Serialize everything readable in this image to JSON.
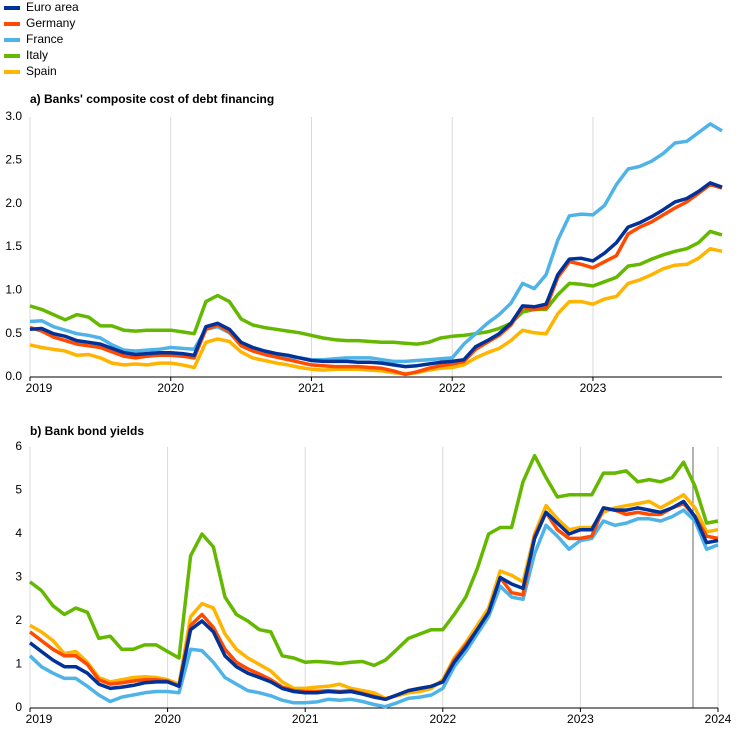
{
  "chart_data": [
    {
      "type": "line",
      "title": "a) Banks' composite cost of debt financing",
      "x": [
        2019,
        2019.083,
        2019.167,
        2019.25,
        2019.333,
        2019.417,
        2019.5,
        2019.583,
        2019.667,
        2019.75,
        2019.833,
        2019.917,
        2020,
        2020.083,
        2020.167,
        2020.25,
        2020.333,
        2020.417,
        2020.5,
        2020.583,
        2020.667,
        2020.75,
        2020.833,
        2020.917,
        2021,
        2021.083,
        2021.167,
        2021.25,
        2021.333,
        2021.417,
        2021.5,
        2021.583,
        2021.667,
        2021.75,
        2021.833,
        2021.917,
        2022,
        2022.083,
        2022.167,
        2022.25,
        2022.333,
        2022.417,
        2022.5,
        2022.583,
        2022.667,
        2022.75,
        2022.833,
        2022.917,
        2023,
        2023.083,
        2023.167,
        2023.25,
        2023.333,
        2023.417,
        2023.5,
        2023.583,
        2023.667,
        2023.75,
        2023.833,
        2023.917
      ],
      "xlim": [
        2019,
        2023.917
      ],
      "xticks": [
        2019,
        2020,
        2021,
        2022,
        2023
      ],
      "ylim": [
        0,
        3
      ],
      "yticks": [
        {
          "value": 0,
          "label": "0.0"
        },
        0.5,
        {
          "value": 1,
          "label": "1.0"
        },
        1.5,
        {
          "value": 2,
          "label": "2.0"
        },
        2.5,
        {
          "value": 3,
          "label": "3.0"
        }
      ],
      "grid": "x",
      "series": [
        {
          "name": "Euro area",
          "color": "#003299",
          "values": [
            0.55,
            0.56,
            0.5,
            0.47,
            0.42,
            0.4,
            0.38,
            0.33,
            0.28,
            0.26,
            0.27,
            0.28,
            0.28,
            0.27,
            0.25,
            0.58,
            0.62,
            0.55,
            0.4,
            0.34,
            0.3,
            0.27,
            0.25,
            0.22,
            0.19,
            0.18,
            0.18,
            0.18,
            0.17,
            0.17,
            0.16,
            0.14,
            0.12,
            0.13,
            0.15,
            0.17,
            0.18,
            0.2,
            0.35,
            0.42,
            0.5,
            0.62,
            0.82,
            0.81,
            0.84,
            1.18,
            1.36,
            1.37,
            1.34,
            1.43,
            1.55,
            1.73,
            1.78,
            1.85,
            1.93,
            2.02,
            2.06,
            2.14,
            2.24,
            2.19
          ]
        },
        {
          "name": "Germany",
          "color": "#ff4b00",
          "values": [
            0.57,
            0.53,
            0.46,
            0.42,
            0.38,
            0.36,
            0.34,
            0.29,
            0.24,
            0.22,
            0.24,
            0.25,
            0.25,
            0.24,
            0.22,
            0.55,
            0.6,
            0.52,
            0.36,
            0.3,
            0.26,
            0.23,
            0.2,
            0.17,
            0.14,
            0.13,
            0.12,
            0.12,
            0.12,
            0.11,
            0.1,
            0.07,
            0.03,
            0.06,
            0.1,
            0.13,
            0.15,
            0.18,
            0.32,
            0.4,
            0.48,
            0.6,
            0.8,
            0.78,
            0.8,
            1.15,
            1.33,
            1.3,
            1.26,
            1.33,
            1.4,
            1.65,
            1.73,
            1.79,
            1.87,
            1.95,
            2.02,
            2.12,
            2.22,
            2.18
          ]
        },
        {
          "name": "France",
          "color": "#4fb3e8",
          "values": [
            0.64,
            0.65,
            0.58,
            0.54,
            0.5,
            0.48,
            0.45,
            0.37,
            0.31,
            0.3,
            0.31,
            0.32,
            0.34,
            0.33,
            0.32,
            0.55,
            0.58,
            0.51,
            0.37,
            0.31,
            0.27,
            0.24,
            0.22,
            0.22,
            0.2,
            0.2,
            0.21,
            0.22,
            0.22,
            0.22,
            0.2,
            0.18,
            0.18,
            0.19,
            0.2,
            0.21,
            0.22,
            0.38,
            0.5,
            0.62,
            0.72,
            0.85,
            1.08,
            1.02,
            1.18,
            1.58,
            1.86,
            1.88,
            1.87,
            1.98,
            2.22,
            2.4,
            2.43,
            2.49,
            2.58,
            2.7,
            2.72,
            2.82,
            2.92,
            2.84
          ]
        },
        {
          "name": "Italy",
          "color": "#65b800",
          "values": [
            0.82,
            0.78,
            0.72,
            0.66,
            0.72,
            0.69,
            0.59,
            0.59,
            0.54,
            0.53,
            0.54,
            0.54,
            0.54,
            0.52,
            0.5,
            0.87,
            0.94,
            0.87,
            0.67,
            0.6,
            0.57,
            0.55,
            0.53,
            0.51,
            0.48,
            0.45,
            0.43,
            0.42,
            0.42,
            0.41,
            0.4,
            0.4,
            0.39,
            0.38,
            0.4,
            0.45,
            0.47,
            0.48,
            0.5,
            0.52,
            0.56,
            0.62,
            0.75,
            0.78,
            0.78,
            0.95,
            1.08,
            1.07,
            1.05,
            1.1,
            1.15,
            1.28,
            1.3,
            1.36,
            1.41,
            1.45,
            1.48,
            1.55,
            1.68,
            1.64
          ]
        },
        {
          "name": "Spain",
          "color": "#ffb400",
          "values": [
            0.37,
            0.34,
            0.32,
            0.3,
            0.25,
            0.26,
            0.22,
            0.16,
            0.14,
            0.15,
            0.14,
            0.16,
            0.16,
            0.14,
            0.11,
            0.4,
            0.44,
            0.41,
            0.29,
            0.22,
            0.19,
            0.16,
            0.14,
            0.11,
            0.09,
            0.08,
            0.09,
            0.09,
            0.09,
            0.08,
            0.07,
            0.05,
            0.04,
            0.05,
            0.08,
            0.1,
            0.11,
            0.14,
            0.22,
            0.28,
            0.33,
            0.42,
            0.54,
            0.51,
            0.5,
            0.73,
            0.87,
            0.87,
            0.84,
            0.9,
            0.93,
            1.08,
            1.12,
            1.18,
            1.25,
            1.29,
            1.3,
            1.37,
            1.48,
            1.45
          ]
        }
      ]
    },
    {
      "type": "line",
      "title": "b) Bank bond yields",
      "x": [
        2019,
        2019.083,
        2019.167,
        2019.25,
        2019.333,
        2019.417,
        2019.5,
        2019.583,
        2019.667,
        2019.75,
        2019.833,
        2019.917,
        2020,
        2020.083,
        2020.167,
        2020.25,
        2020.333,
        2020.417,
        2020.5,
        2020.583,
        2020.667,
        2020.75,
        2020.833,
        2020.917,
        2021,
        2021.083,
        2021.167,
        2021.25,
        2021.333,
        2021.417,
        2021.5,
        2021.583,
        2021.667,
        2021.75,
        2021.833,
        2021.917,
        2022,
        2022.083,
        2022.167,
        2022.25,
        2022.333,
        2022.417,
        2022.5,
        2022.583,
        2022.667,
        2022.75,
        2022.833,
        2022.917,
        2023,
        2023.083,
        2023.167,
        2023.25,
        2023.333,
        2023.417,
        2023.5,
        2023.583,
        2023.667,
        2023.75,
        2023.833,
        2023.917,
        2024
      ],
      "xlim": [
        2019,
        2024
      ],
      "xticks": [
        2019,
        2020,
        2021,
        2022,
        2023,
        2024
      ],
      "ylim": [
        0,
        6
      ],
      "yticks": [
        0,
        1,
        2,
        3,
        4,
        5,
        6
      ],
      "grid": "x",
      "series": [
        {
          "color": "#003299",
          "values": [
            1.5,
            1.3,
            1.1,
            0.95,
            0.95,
            0.8,
            0.55,
            0.45,
            0.48,
            0.52,
            0.58,
            0.6,
            0.6,
            0.5,
            1.8,
            2.0,
            1.75,
            1.2,
            0.95,
            0.8,
            0.7,
            0.6,
            0.45,
            0.38,
            0.35,
            0.35,
            0.38,
            0.36,
            0.38,
            0.32,
            0.25,
            0.2,
            0.3,
            0.4,
            0.45,
            0.5,
            0.6,
            1.05,
            1.4,
            1.8,
            2.2,
            3.0,
            2.85,
            2.75,
            3.9,
            4.5,
            4.25,
            4.0,
            4.1,
            4.1,
            4.6,
            4.55,
            4.55,
            4.6,
            4.55,
            4.5,
            4.6,
            4.75,
            4.4,
            3.8,
            3.85
          ]
        },
        {
          "color": "#ff4b00",
          "values": [
            1.75,
            1.55,
            1.35,
            1.2,
            1.2,
            1.0,
            0.65,
            0.55,
            0.58,
            0.62,
            0.65,
            0.65,
            0.62,
            0.5,
            1.9,
            2.15,
            1.85,
            1.35,
            1.05,
            0.9,
            0.78,
            0.65,
            0.48,
            0.4,
            0.38,
            0.38,
            0.4,
            0.38,
            0.4,
            0.33,
            0.27,
            0.2,
            0.3,
            0.4,
            0.45,
            0.5,
            0.6,
            1.1,
            1.45,
            1.8,
            2.2,
            3.0,
            2.65,
            2.6,
            3.95,
            4.5,
            4.1,
            3.9,
            3.9,
            3.95,
            4.6,
            4.55,
            4.45,
            4.5,
            4.45,
            4.45,
            4.6,
            4.7,
            4.4,
            3.95,
            3.9
          ]
        },
        {
          "color": "#4fb3e8",
          "values": [
            1.2,
            0.95,
            0.8,
            0.68,
            0.68,
            0.5,
            0.3,
            0.15,
            0.25,
            0.3,
            0.35,
            0.38,
            0.38,
            0.35,
            1.35,
            1.32,
            1.05,
            0.7,
            0.55,
            0.4,
            0.35,
            0.28,
            0.18,
            0.12,
            0.12,
            0.14,
            0.2,
            0.18,
            0.2,
            0.15,
            0.08,
            0.03,
            0.12,
            0.22,
            0.25,
            0.3,
            0.45,
            0.95,
            1.3,
            1.7,
            2.1,
            2.8,
            2.55,
            2.5,
            3.55,
            4.2,
            3.95,
            3.65,
            3.85,
            3.9,
            4.3,
            4.2,
            4.25,
            4.35,
            4.35,
            4.3,
            4.4,
            4.55,
            4.3,
            3.65,
            3.75
          ]
        },
        {
          "color": "#65b800",
          "values": [
            2.9,
            2.7,
            2.35,
            2.15,
            2.3,
            2.2,
            1.6,
            1.65,
            1.35,
            1.35,
            1.45,
            1.45,
            1.3,
            1.15,
            3.5,
            4.0,
            3.7,
            2.55,
            2.15,
            2.0,
            1.8,
            1.75,
            1.2,
            1.15,
            1.05,
            1.07,
            1.05,
            1.02,
            1.05,
            1.07,
            0.98,
            1.1,
            1.35,
            1.6,
            1.7,
            1.8,
            1.8,
            2.15,
            2.55,
            3.2,
            4.0,
            4.15,
            4.15,
            5.2,
            5.8,
            5.3,
            4.85,
            4.9,
            4.9,
            4.9,
            5.4,
            5.4,
            5.45,
            5.2,
            5.25,
            5.2,
            5.3,
            5.65,
            5.1,
            4.25,
            4.3
          ]
        },
        {
          "color": "#ffb400",
          "values": [
            1.9,
            1.75,
            1.55,
            1.25,
            1.3,
            1.05,
            0.7,
            0.6,
            0.65,
            0.7,
            0.72,
            0.7,
            0.65,
            0.55,
            2.1,
            2.4,
            2.3,
            1.7,
            1.35,
            1.15,
            1.0,
            0.85,
            0.6,
            0.45,
            0.45,
            0.48,
            0.5,
            0.55,
            0.45,
            0.4,
            0.35,
            0.22,
            0.28,
            0.35,
            0.38,
            0.45,
            0.65,
            1.15,
            1.5,
            1.9,
            2.3,
            3.15,
            3.05,
            2.9,
            4.0,
            4.65,
            4.35,
            4.1,
            4.15,
            4.15,
            4.5,
            4.6,
            4.65,
            4.7,
            4.75,
            4.6,
            4.75,
            4.9,
            4.6,
            4.05,
            4.1
          ]
        }
      ]
    }
  ]
}
